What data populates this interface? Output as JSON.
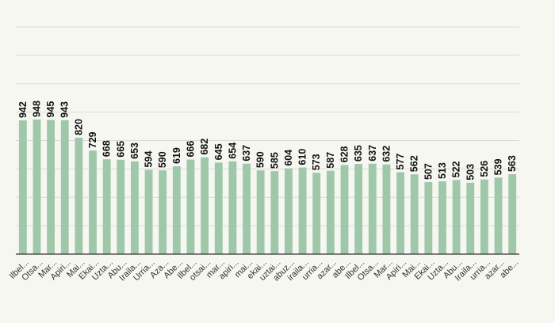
{
  "chart_data": {
    "type": "bar",
    "title": "",
    "xlabel": "",
    "ylabel": "",
    "ylim": [
      0,
      1600
    ],
    "grid": true,
    "bar_color": "#9fc8ab",
    "categories": [
      "Ilbel...",
      "Otsa...",
      "Mar...",
      "Apiri...",
      "Mai...",
      "Ekai...",
      "Uzta...",
      "Abu...",
      "Iraila...",
      "Urria...",
      "Aza...",
      "Abe...",
      "Ilbel...",
      "otsai...",
      "mar...",
      "apiri...",
      "mai...",
      "ekai...",
      "uztai...",
      "abuz...",
      "iraila...",
      "urria...",
      "azar...",
      "abe...",
      "Ilbel...",
      "Otsa...",
      "Mar...",
      "Apiri...",
      "Mai...",
      "Ekai...",
      "Uzta...",
      "Abu...",
      "Iraila...",
      "urria...",
      "azar...",
      "abe..."
    ],
    "values": [
      942,
      948,
      945,
      943,
      820,
      729,
      668,
      665,
      653,
      594,
      590,
      619,
      666,
      682,
      645,
      654,
      637,
      590,
      585,
      604,
      610,
      573,
      587,
      628,
      635,
      637,
      632,
      577,
      562,
      507,
      513,
      522,
      503,
      526,
      539,
      563
    ]
  }
}
